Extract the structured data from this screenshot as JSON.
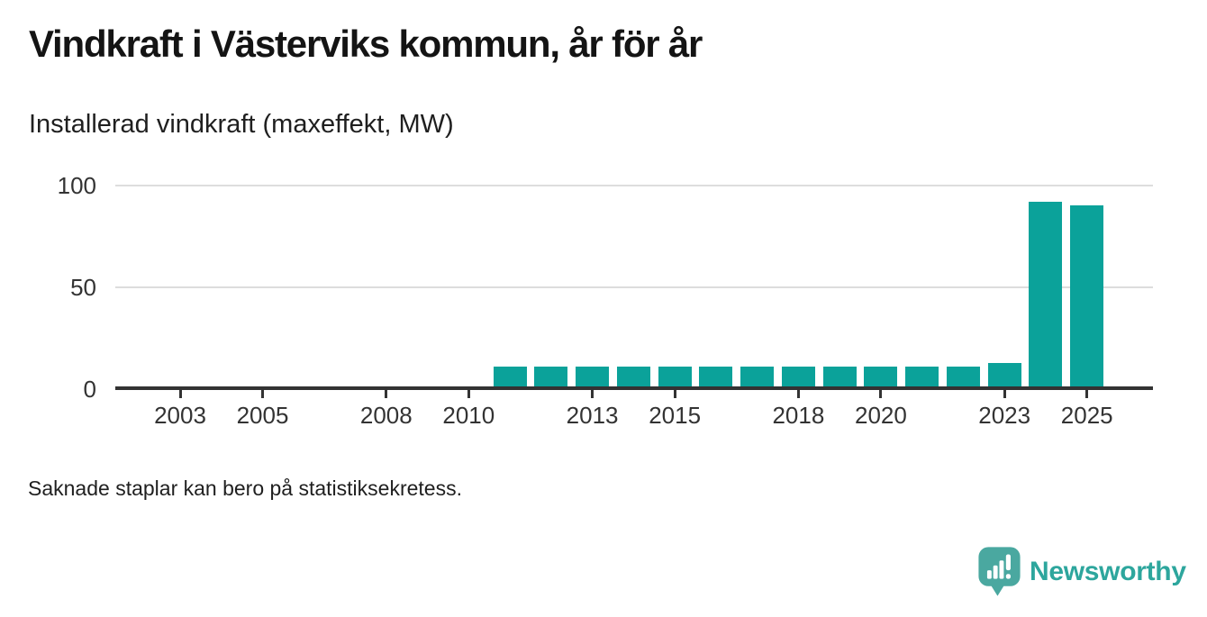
{
  "header": {
    "title": "Vindkraft i Västerviks kommun, år för år",
    "subtitle": "Installerad vindkraft (maxeffekt, MW)"
  },
  "chart_data": {
    "type": "bar",
    "title": "Vindkraft i Västerviks kommun, år för år",
    "subtitle_ylabel": "Installerad vindkraft (maxeffekt, MW)",
    "unit": "MW",
    "categories": [
      "2011",
      "2012",
      "2013",
      "2014",
      "2015",
      "2016",
      "2017",
      "2018",
      "2019",
      "2020",
      "2021",
      "2022",
      "2023",
      "2024",
      "2025"
    ],
    "values": [
      11,
      11,
      11,
      11,
      11,
      11,
      11,
      11,
      11,
      11,
      11,
      11,
      12.5,
      92,
      90
    ],
    "x_axis": {
      "domain_start": 2002,
      "domain_end": 2026,
      "tick_years": [
        "2003",
        "2005",
        "2008",
        "2010",
        "2013",
        "2015",
        "2018",
        "2020",
        "2023",
        "2025"
      ]
    },
    "y_axis": {
      "ticks": [
        0,
        50,
        100
      ],
      "ylim": [
        0,
        100
      ]
    },
    "grid": "horizontal",
    "legend": "none",
    "colors": {
      "bar": "#0ba29a",
      "axis": "#333333",
      "gridline": "#dddddd",
      "tick_text": "#333333"
    }
  },
  "footer": {
    "note": "Saknade staplar kan bero på statistiksekretess.",
    "brand": "Newsworthy",
    "brand_color": "#2da69d",
    "logo_mark_color": "#4aa8a0"
  }
}
